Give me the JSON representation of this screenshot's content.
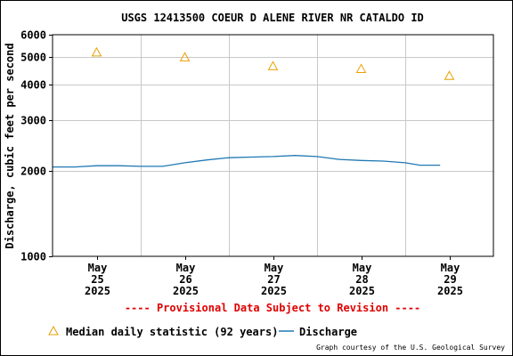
{
  "chart_data": {
    "type": "line",
    "title": "USGS 12413500 COEUR D ALENE RIVER NR CATALDO ID",
    "ylabel": "Discharge, cubic feet per second",
    "xlabel": "",
    "yscale": "log",
    "ylim": [
      1000,
      6000
    ],
    "yticks": [
      {
        "value": 1000,
        "label": "1000"
      },
      {
        "value": 2000,
        "label": "2000"
      },
      {
        "value": 3000,
        "label": "3000"
      },
      {
        "value": 4000,
        "label": "4000"
      },
      {
        "value": 5000,
        "label": "5000"
      },
      {
        "value": 6000,
        "label": "6000"
      }
    ],
    "xlim": [
      "2025-05-24 12:00",
      "2025-05-29 12:00"
    ],
    "xticks": [
      {
        "date": "2025-05-25",
        "month": "May",
        "day": "25",
        "year": "2025"
      },
      {
        "date": "2025-05-26",
        "month": "May",
        "day": "26",
        "year": "2025"
      },
      {
        "date": "2025-05-27",
        "month": "May",
        "day": "27",
        "year": "2025"
      },
      {
        "date": "2025-05-28",
        "month": "May",
        "day": "28",
        "year": "2025"
      },
      {
        "date": "2025-05-29",
        "month": "May",
        "day": "29",
        "year": "2025"
      }
    ],
    "grid": true,
    "series": [
      {
        "name": "Median daily statistic (92 years)",
        "type": "scatter",
        "marker": "triangle",
        "color": "#e8a000",
        "points": [
          {
            "x": "2025-05-25",
            "y": 5200
          },
          {
            "x": "2025-05-26",
            "y": 5000
          },
          {
            "x": "2025-05-27",
            "y": 4650
          },
          {
            "x": "2025-05-28",
            "y": 4550
          },
          {
            "x": "2025-05-29",
            "y": 4300
          }
        ]
      },
      {
        "name": "Discharge",
        "type": "line",
        "color": "#1f78b4",
        "points": [
          {
            "x": "2025-05-24 12:00",
            "y": 2060
          },
          {
            "x": "2025-05-24 18:00",
            "y": 2060
          },
          {
            "x": "2025-05-25 00:00",
            "y": 2080
          },
          {
            "x": "2025-05-25 06:00",
            "y": 2080
          },
          {
            "x": "2025-05-25 12:00",
            "y": 2070
          },
          {
            "x": "2025-05-25 18:00",
            "y": 2070
          },
          {
            "x": "2025-05-26 00:00",
            "y": 2130
          },
          {
            "x": "2025-05-26 06:00",
            "y": 2180
          },
          {
            "x": "2025-05-26 12:00",
            "y": 2220
          },
          {
            "x": "2025-05-26 18:00",
            "y": 2230
          },
          {
            "x": "2025-05-27 00:00",
            "y": 2240
          },
          {
            "x": "2025-05-27 06:00",
            "y": 2260
          },
          {
            "x": "2025-05-27 12:00",
            "y": 2240
          },
          {
            "x": "2025-05-27 18:00",
            "y": 2190
          },
          {
            "x": "2025-05-28 00:00",
            "y": 2170
          },
          {
            "x": "2025-05-28 06:00",
            "y": 2160
          },
          {
            "x": "2025-05-28 12:00",
            "y": 2130
          },
          {
            "x": "2025-05-28 16:00",
            "y": 2090
          },
          {
            "x": "2025-05-28 21:30",
            "y": 2090
          }
        ]
      }
    ],
    "provisional_note": "---- Provisional Data Subject to Revision ----",
    "legend": [
      {
        "label": "Median daily statistic (92 years)",
        "symbol": "triangle",
        "color": "#e8a000"
      },
      {
        "label": "Discharge",
        "symbol": "line",
        "color": "#1f78b4"
      }
    ],
    "legend_placement": "bottom",
    "credit": "Graph courtesy of the U.S. Geological Survey"
  }
}
